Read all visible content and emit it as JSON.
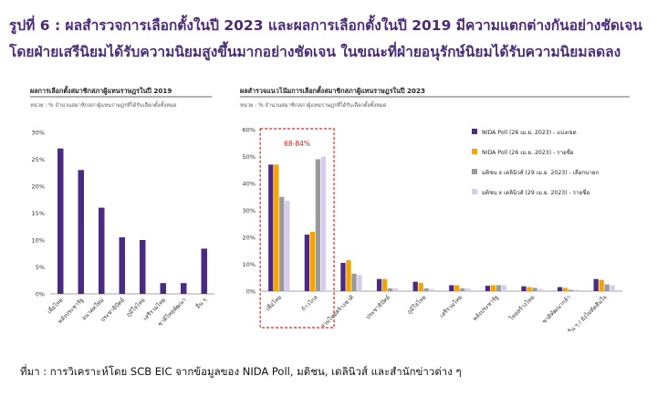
{
  "headline": {
    "line1": "รูปที่ 6 : ผลสำรวจการเลือกตั้งในปี 2023 และผลการเลือกตั้งในปี 2019 มีความแตกต่างกันอย่างชัดเจน",
    "line2": "โดยฝ่ายเสรีนิยมได้รับความนิยมสูงขึ้นมากอย่างชัดเจน ในขณะที่ฝ่ายอนุรักษ์นิยมได้รับความนิยมลดลง"
  },
  "source": "ที่มา : การวิเคราะห์โดย SCB EIC จากข้อมูลของ NIDA Poll, มติชน, เดลินิวส์ และสำนักข่าวต่าง ๆ",
  "colors": {
    "headline": "#4a2b7a",
    "bar_2019": "#4b2a83",
    "nida_district": "#4b2a83",
    "nida_list": "#f5a300",
    "matichon_pm": "#9a9a9a",
    "matichon_list": "#d6ccec",
    "highlight_box": "#e02020"
  },
  "chart_data": [
    {
      "type": "bar",
      "title": "ผลการเลือกตั้งสมาชิกสภาผู้แทนราษฎรในปี 2019",
      "subtitle": "หน่วย : % จำนวนสมาชิกสภาผู้แทนราษฎรที่ได้รับเลือกตั้งทั้งหมด",
      "categories": [
        "เพื่อไทย",
        "พลังประชารัฐ",
        "อนาคตใหม่",
        "ประชาธิปัตย์",
        "ภูมิใจไทย",
        "เสรีรวมไทย",
        "ชาติไทยพัฒนา",
        "อื่น ๆ"
      ],
      "values": [
        27,
        23,
        16,
        10.5,
        10,
        2,
        2,
        8.4
      ],
      "ylim": [
        0,
        30
      ],
      "yticks": [
        "0%",
        "5%",
        "10%",
        "15%",
        "20%",
        "25%",
        "30%"
      ],
      "grid": false
    },
    {
      "type": "bar",
      "title": "ผลสำรวจแนวโน้มการเลือกตั้งสมาชิกสภาผู้แทนราษฎรในปี 2023",
      "subtitle": "หน่วย : % จำนวนสมาชิกสภาผู้แทนราษฎรที่ได้รับเลือกตั้งทั้งหมด",
      "categories": [
        "เพื่อไทย",
        "ก้าวไกล",
        "รวมไทยสร้างชาติ",
        "ประชาธิปัตย์",
        "ภูมิใจไทย",
        "เสรีรวมไทย",
        "พลังประชารัฐ",
        "ไทยสร้างไทย",
        "ชาติพัฒนากล้า",
        "อื่น ๆ / ยังไม่ตัดสินใจ"
      ],
      "series": [
        {
          "name": "NIDA Poll (26 เม.ย. 2023) - แบ่งเขต",
          "values": [
            47,
            21,
            10.5,
            4.5,
            3.5,
            2.2,
            2,
            1.8,
            1.5,
            4.5
          ]
        },
        {
          "name": "NIDA Poll (26 เม.ย. 2023) - รายชื่อ",
          "values": [
            47,
            22,
            11.5,
            4.5,
            3,
            2.2,
            2.2,
            1.5,
            1.2,
            4.2
          ]
        },
        {
          "name": "มติชน x เดลินิวส์ (29 เม.ย. 2023) - เลือกนายก",
          "values": [
            35,
            49,
            6.5,
            1,
            1,
            1,
            2.2,
            1.2,
            0.5,
            2.5
          ]
        },
        {
          "name": "มติชน x เดลินิวส์ (29 เม.ย. 2023) - รายชื่อ",
          "values": [
            33.5,
            50,
            6,
            1,
            0.8,
            1,
            2.2,
            0.8,
            0.5,
            2.2
          ]
        }
      ],
      "ylim": [
        0,
        60
      ],
      "yticks": [
        "0%",
        "10%",
        "20%",
        "30%",
        "40%",
        "50%",
        "60%"
      ],
      "annotation": "68-84%",
      "legend": "top-right",
      "grid": false
    }
  ]
}
